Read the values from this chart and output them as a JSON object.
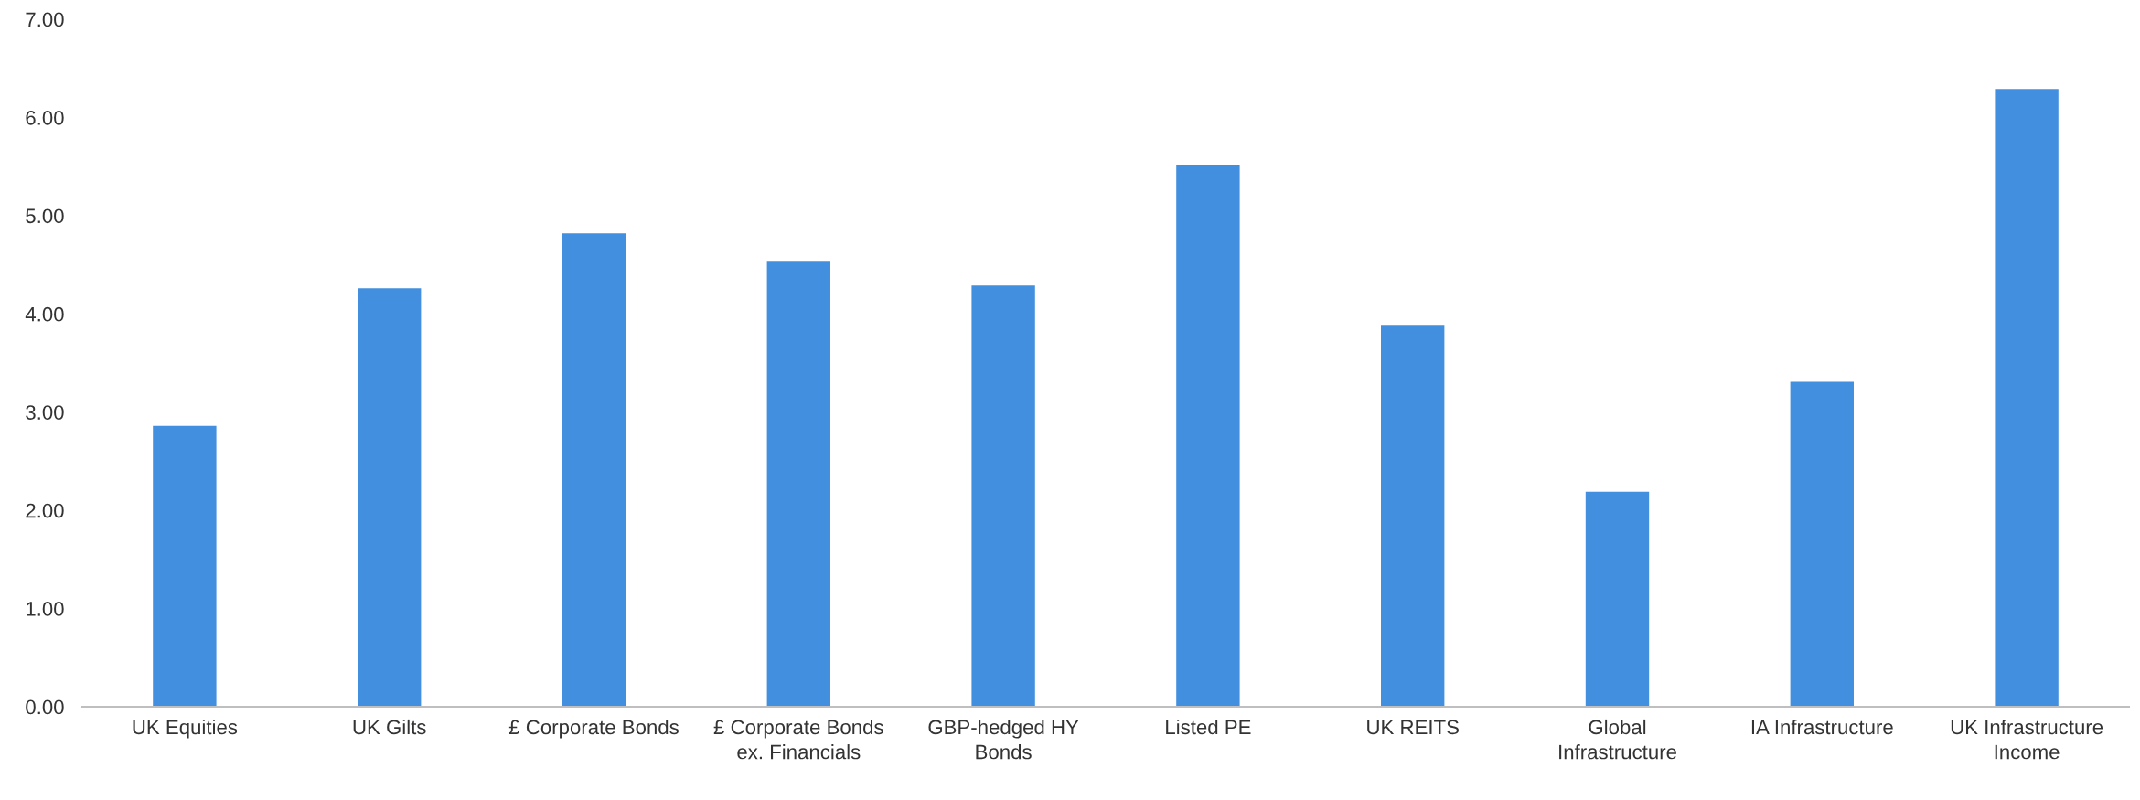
{
  "chart_data": {
    "type": "bar",
    "categories": [
      "UK Equities",
      "UK Gilts",
      "£ Corporate Bonds",
      "£ Corporate Bonds ex. Financials",
      "GBP-hedged HY Bonds",
      "Listed PE",
      "UK REITS",
      "Global Infrastructure",
      "IA Infrastructure",
      "UK Infrastructure Income"
    ],
    "values": [
      2.86,
      4.26,
      4.82,
      4.53,
      4.29,
      5.51,
      3.88,
      2.19,
      3.31,
      6.29
    ],
    "color": "#418fde",
    "ylim": [
      0,
      7
    ],
    "yticks": [
      {
        "value": 0,
        "label": "0.00"
      },
      {
        "value": 1,
        "label": "1.00"
      },
      {
        "value": 2,
        "label": "2.00"
      },
      {
        "value": 3,
        "label": "3.00"
      },
      {
        "value": 4,
        "label": "4.00"
      },
      {
        "value": 5,
        "label": "5.00"
      },
      {
        "value": 6,
        "label": "6.00"
      },
      {
        "value": 7,
        "label": "7.00"
      }
    ],
    "grid": false
  }
}
